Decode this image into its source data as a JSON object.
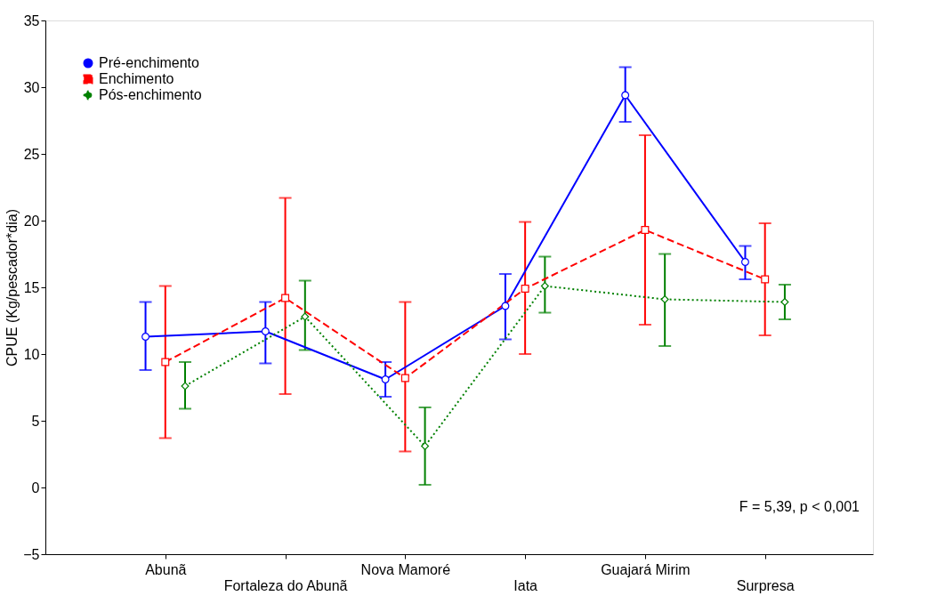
{
  "chart_data": {
    "type": "line",
    "ylabel": "CPUE (Kg/pescador*dia)",
    "categories": [
      "Abunã",
      "Fortaleza do Abunã",
      "Nova Mamoré",
      "Iata",
      "Guajará Mirim",
      "Surpresa"
    ],
    "series": [
      {
        "name": "Pré-enchimento",
        "color": "#0000ff",
        "marker": "circle",
        "line_style": "solid",
        "values": [
          11.3,
          11.7,
          8.1,
          13.6,
          29.4,
          16.9
        ],
        "errors": [
          [
            8.8,
            13.9
          ],
          [
            9.3,
            13.9
          ],
          [
            6.8,
            9.4
          ],
          [
            11.1,
            16.0
          ],
          [
            27.4,
            31.5
          ],
          [
            15.6,
            18.1
          ]
        ]
      },
      {
        "name": "Enchimento",
        "color": "#ff0000",
        "marker": "square",
        "line_style": "dashed",
        "values": [
          9.4,
          14.2,
          8.2,
          14.9,
          19.3,
          15.6
        ],
        "errors": [
          [
            3.7,
            15.1
          ],
          [
            7.0,
            21.7
          ],
          [
            2.7,
            13.9
          ],
          [
            10.0,
            19.9
          ],
          [
            12.2,
            26.4
          ],
          [
            11.4,
            19.8
          ]
        ]
      },
      {
        "name": "Pós-enchimento",
        "color": "#008000",
        "marker": "diamond",
        "line_style": "dotted",
        "values": [
          7.6,
          12.8,
          3.1,
          15.1,
          14.1,
          13.9
        ],
        "errors": [
          [
            5.9,
            9.4
          ],
          [
            10.3,
            15.5
          ],
          [
            0.2,
            6.0
          ],
          [
            13.1,
            17.3
          ],
          [
            10.6,
            17.5
          ],
          [
            12.6,
            15.2
          ]
        ]
      }
    ],
    "ylim": [
      -5,
      35
    ],
    "yticks": [
      -5,
      0,
      5,
      10,
      15,
      20,
      25,
      30,
      35
    ],
    "grid": false,
    "legend": "top left",
    "annotations": [
      "F = 5,39, p < 0,001"
    ]
  }
}
